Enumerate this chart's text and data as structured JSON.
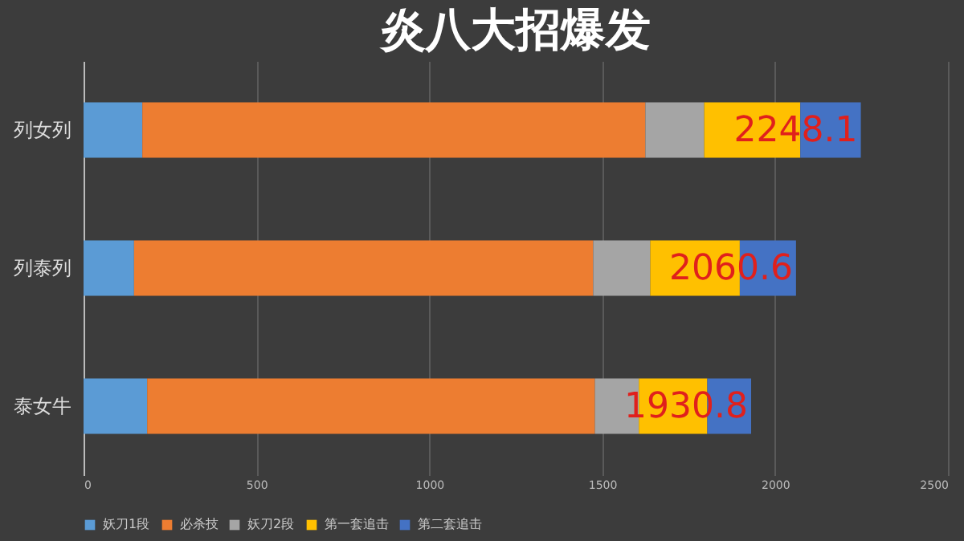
{
  "chart_data": {
    "type": "bar",
    "orientation": "horizontal",
    "stacked": true,
    "title": "炎八大招爆发",
    "categories": [
      "列女列",
      "列泰列",
      "泰女牛"
    ],
    "series": [
      {
        "name": "妖刀1段",
        "color": "#5b9bd5",
        "values": [
          170,
          146,
          184
        ]
      },
      {
        "name": "必杀技",
        "color": "#ed7d31",
        "values": [
          1455,
          1328,
          1295
        ]
      },
      {
        "name": "妖刀2段",
        "color": "#a5a5a5",
        "values": [
          170,
          165,
          127
        ]
      },
      {
        "name": "第一套追击",
        "color": "#ffc000",
        "values": [
          278,
          259,
          198
        ]
      },
      {
        "name": "第二套追击",
        "color": "#4472c4",
        "values": [
          175.1,
          162.6,
          126.8
        ]
      }
    ],
    "totals": [
      "2248.1",
      "2060.6",
      "1930.8"
    ],
    "xlim": [
      0,
      2500
    ],
    "xticks": [
      0,
      500,
      1000,
      1500,
      2000,
      2500
    ],
    "grid": "x",
    "legend": "bottom"
  }
}
